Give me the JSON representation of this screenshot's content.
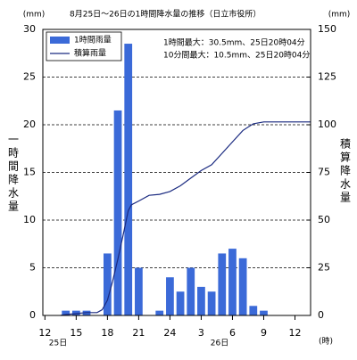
{
  "chart_data": {
    "type": "bar_line",
    "title": "8月25日～26日の1時間降水量の推移（日立市役所）",
    "y_unit": "(mm)",
    "y2_unit": "(mm)",
    "x_unit": "(時)",
    "ylabel": "一時間降水量",
    "y2label": "積算降水量",
    "day_labels": [
      "25日",
      "26日"
    ],
    "annotations": [
      "1時間最大：30.5mm、25日20時04分",
      "10分間最大：10.5mm、25日20時04分"
    ],
    "xlim": [
      -0.2,
      25.5
    ],
    "xticks": [
      {
        "value": 0,
        "label": "12"
      },
      {
        "value": 3,
        "label": "15"
      },
      {
        "value": 6,
        "label": "18"
      },
      {
        "value": 9,
        "label": "21"
      },
      {
        "value": 12,
        "label": "24"
      },
      {
        "value": 15,
        "label": "3"
      },
      {
        "value": 18,
        "label": "6"
      },
      {
        "value": 21,
        "label": "9"
      },
      {
        "value": 24,
        "label": "12"
      }
    ],
    "ylim": [
      0,
      30
    ],
    "yticks": [
      0,
      5,
      10,
      15,
      20,
      25,
      30
    ],
    "y2lim": [
      0,
      150
    ],
    "y2ticks": [
      0,
      25,
      50,
      75,
      100,
      125,
      150
    ],
    "grid": true,
    "legend": "top-left",
    "series": [
      {
        "name": "1時間雨量",
        "type": "bar",
        "color": "#3b6ad8",
        "x": [
          2,
          3,
          4,
          6,
          7,
          8,
          9,
          11,
          12,
          13,
          14,
          15,
          16,
          17,
          18,
          19,
          20,
          21
        ],
        "values": [
          0.5,
          0.5,
          0.5,
          6.5,
          21.5,
          28.5,
          5,
          0.5,
          4,
          2.5,
          5,
          3,
          2.5,
          6.5,
          7,
          6,
          1,
          0.5
        ]
      },
      {
        "name": "積算雨量",
        "type": "line",
        "color": "#1a2a80",
        "axis": "y2",
        "x": [
          1.5,
          2,
          3,
          4,
          5,
          5.5,
          6,
          6.5,
          7,
          7.5,
          8,
          8.3,
          9,
          10,
          11,
          12,
          13,
          14,
          15,
          16,
          17,
          18,
          19,
          20,
          21,
          22,
          25.5
        ],
        "values": [
          0,
          0.5,
          1,
          1.5,
          1.5,
          3,
          8,
          18,
          29.5,
          42,
          55,
          58,
          60,
          63,
          63.5,
          65,
          68,
          72,
          76,
          79,
          85,
          91,
          97,
          100.5,
          101.5,
          101.5,
          101.5
        ]
      }
    ]
  }
}
